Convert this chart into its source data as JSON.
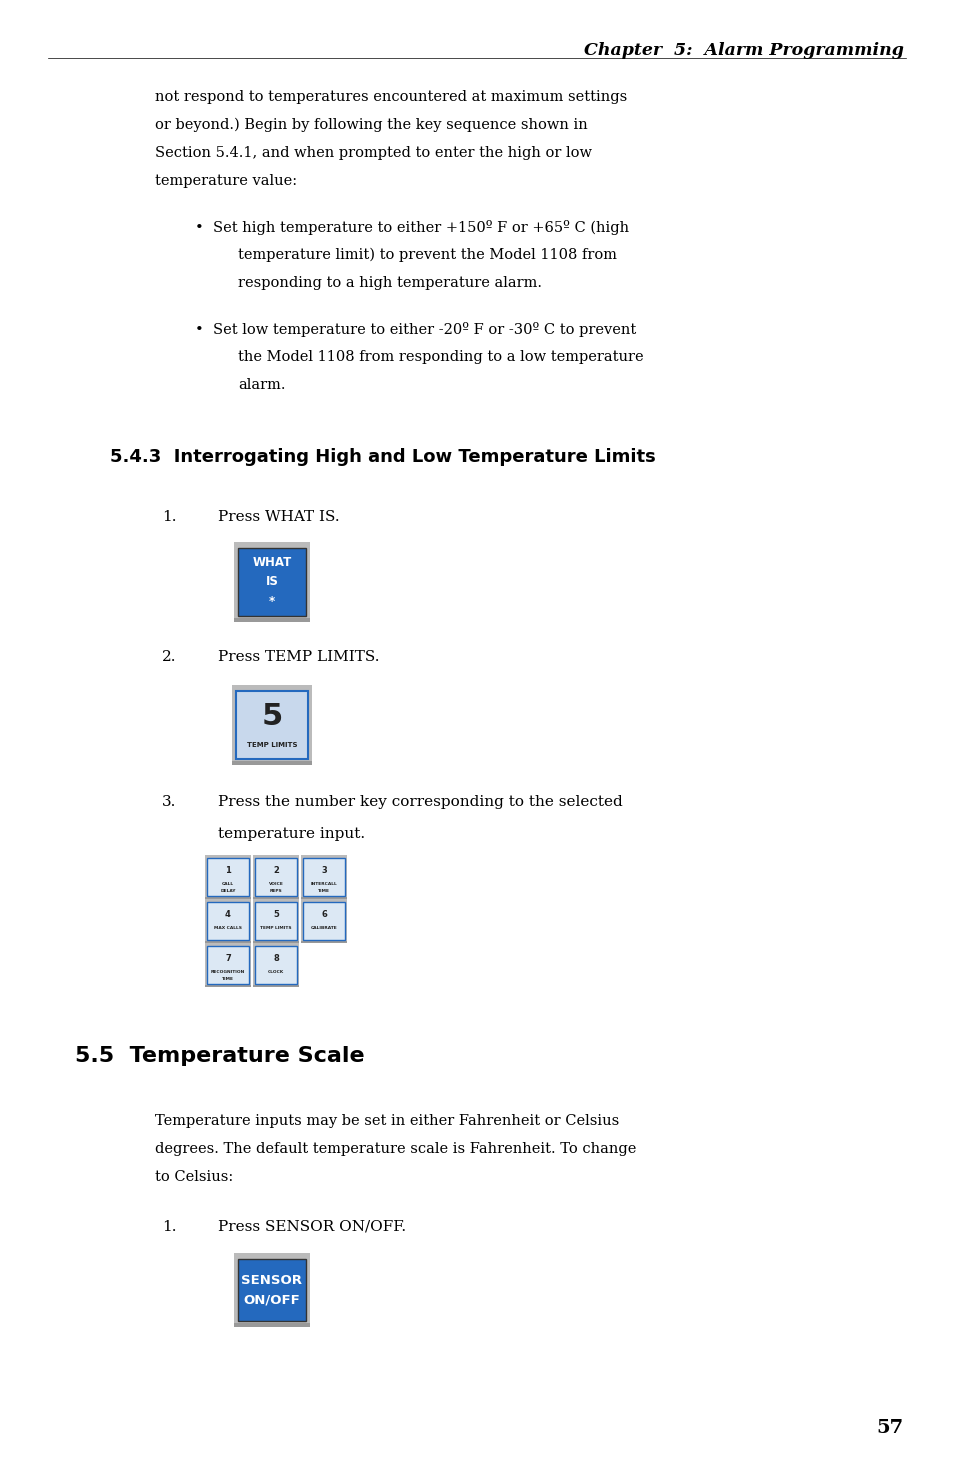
{
  "bg_color": "#ffffff",
  "page_width": 9.54,
  "page_height": 14.75,
  "chapter_header": "Chapter  5:  Alarm Programming",
  "body_text_1a": "not respond to temperatures encountered at maximum settings",
  "body_text_1b": "or beyond.) Begin by following the key sequence shown in",
  "body_text_1c": "Section 5.4.1, and when prompted to enter the high or low",
  "body_text_1d": "temperature value:",
  "bullet1_line1": "•  Set high temperature to either +150º F or +65º C (high",
  "bullet1_line2": "temperature limit) to prevent the Model 1108 from",
  "bullet1_line3": "responding to a high temperature alarm.",
  "bullet2_line1": "•  Set low temperature to either -20º F or -30º C to prevent",
  "bullet2_line2": "the Model 1108 from responding to a low temperature",
  "bullet2_line3": "alarm.",
  "section_543": "5.4.3  Interrogating High and Low Temperature Limits",
  "step1_text": "Press WHAT IS.",
  "step2_text": "Press TEMP LIMITS.",
  "step3_line1": "Press the number key corresponding to the selected",
  "step3_line2": "temperature input.",
  "section_55": "5.5  Temperature Scale",
  "body_55a": "Temperature inputs may be set in either Fahrenheit or Celsius",
  "body_55b": "degrees. The default temperature scale is Fahrenheit. To change",
  "body_55c": "to Celsius:",
  "step1_55": "Press SENSOR ON/OFF.",
  "page_number": "57",
  "blue_color": "#2469be",
  "key_border_color": "#8899aa",
  "key_shadow_color": "#aaaaaa",
  "key_bg_light": "#c8d8ec",
  "key_text_white": "#ffffff",
  "key_text_dark": "#222222",
  "small_key_bg": "#dce8f4",
  "small_key_border": "#7799bb"
}
